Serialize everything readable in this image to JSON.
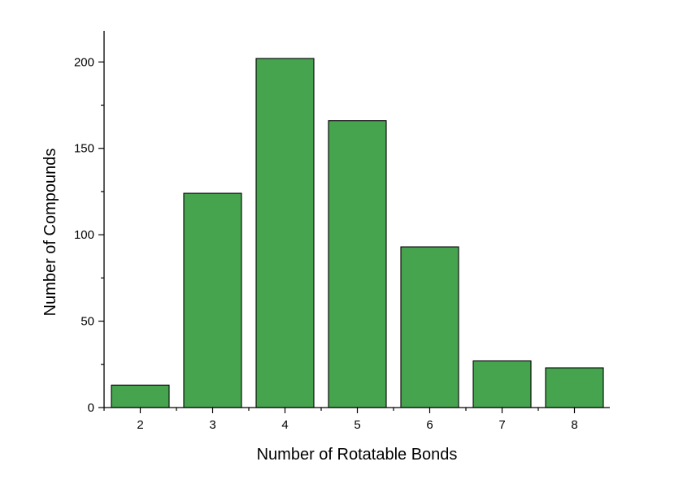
{
  "chart_data": {
    "type": "bar",
    "categories": [
      "2",
      "3",
      "4",
      "5",
      "6",
      "7",
      "8"
    ],
    "values": [
      13,
      124,
      202,
      166,
      93,
      27,
      23
    ],
    "title": "",
    "xlabel": "Number of Rotatable Bonds",
    "ylabel": "Number of Compounds",
    "ylim": [
      0,
      218
    ],
    "yticks": [
      0,
      50,
      100,
      150,
      200
    ],
    "grid": false,
    "bar_color": "#46a44f",
    "edge_color": "#000000"
  }
}
